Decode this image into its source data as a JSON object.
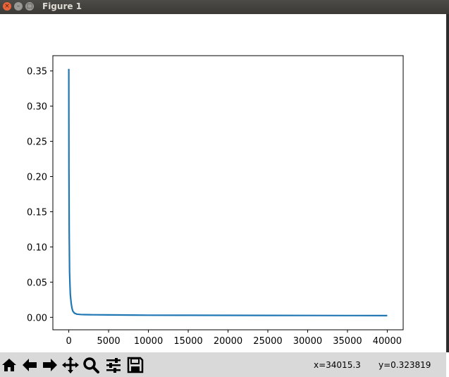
{
  "window": {
    "title": "Figure 1"
  },
  "toolbar": {
    "buttons": [
      {
        "icon": "home-icon"
      },
      {
        "icon": "back-arrow-icon"
      },
      {
        "icon": "forward-arrow-icon"
      },
      {
        "icon": "pan-icon"
      },
      {
        "icon": "zoom-icon"
      },
      {
        "icon": "configure-subplots-icon"
      },
      {
        "icon": "save-icon"
      }
    ],
    "x_readout": "x=34015.3",
    "y_readout": "y=0.323819"
  },
  "chart_data": {
    "type": "line",
    "title": "",
    "xlabel": "",
    "ylabel": "",
    "xlim": [
      -2000,
      42000
    ],
    "ylim": [
      -0.0177,
      0.3717
    ],
    "xticks": [
      0,
      5000,
      10000,
      15000,
      20000,
      25000,
      30000,
      35000,
      40000
    ],
    "xtick_labels": [
      "0",
      "5000",
      "10000",
      "15000",
      "20000",
      "25000",
      "30000",
      "35000",
      "40000"
    ],
    "yticks": [
      0.0,
      0.05,
      0.1,
      0.15,
      0.2,
      0.25,
      0.3,
      0.35
    ],
    "ytick_labels": [
      "0.00",
      "0.05",
      "0.10",
      "0.15",
      "0.20",
      "0.25",
      "0.30",
      "0.35"
    ],
    "grid": false,
    "color": "#1f77b4",
    "series": [
      {
        "x": [
          0,
          20,
          50,
          100,
          150,
          200,
          300,
          400,
          500,
          700,
          1000,
          1500,
          2000,
          3000,
          5000,
          8000,
          10000,
          15000,
          20000,
          25000,
          30000,
          35000,
          40000
        ],
        "y": [
          0.353,
          0.21,
          0.12,
          0.065,
          0.045,
          0.032,
          0.02,
          0.013,
          0.009,
          0.006,
          0.0045,
          0.004,
          0.0038,
          0.0036,
          0.0034,
          0.0032,
          0.003,
          0.0029,
          0.0028,
          0.0027,
          0.0026,
          0.0025,
          0.0024
        ]
      }
    ]
  }
}
